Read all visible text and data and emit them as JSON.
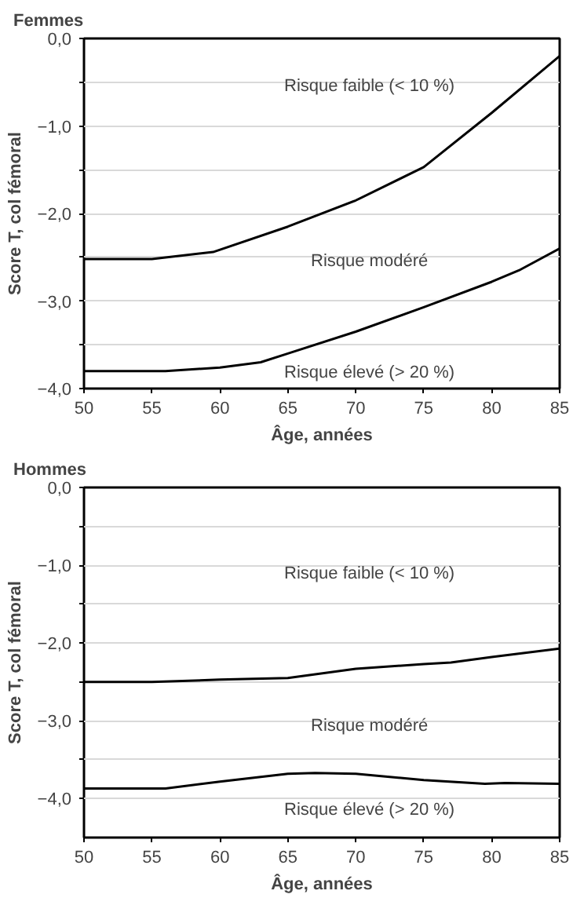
{
  "chart_data": [
    {
      "type": "line",
      "title": "Femmes",
      "xlabel": "Âge, années",
      "ylabel": "Score T, col fémoral",
      "xlim": [
        50,
        85
      ],
      "ylim": [
        -4,
        0
      ],
      "xticks": [
        50,
        55,
        60,
        65,
        70,
        75,
        80,
        85
      ],
      "yticks": [
        {
          "value": 0,
          "label": "0,0"
        },
        {
          "value": -0.5,
          "label": null
        },
        {
          "value": -1,
          "label": "−1,0"
        },
        {
          "value": -1.5,
          "label": null
        },
        {
          "value": -2,
          "label": "−2,0"
        },
        {
          "value": -2.5,
          "label": null
        },
        {
          "value": -3,
          "label": "−3,0"
        },
        {
          "value": -3.5,
          "label": null
        },
        {
          "value": -4,
          "label": "−4,0"
        }
      ],
      "grid": "y",
      "marker": "none",
      "line_style": "solid",
      "series": [
        {
          "color": "#000000",
          "x": [
            50,
            55,
            59.5,
            65,
            70,
            75,
            80,
            85
          ],
          "values": [
            -2.52,
            -2.52,
            -2.44,
            -2.15,
            -1.85,
            -1.47,
            -0.85,
            -0.2
          ]
        },
        {
          "color": "#000000",
          "x": [
            50,
            56,
            60,
            63,
            65,
            70,
            75,
            80,
            82,
            85
          ],
          "values": [
            -3.8,
            -3.8,
            -3.76,
            -3.7,
            -3.6,
            -3.35,
            -3.07,
            -2.78,
            -2.65,
            -2.4
          ]
        }
      ],
      "annotations": [
        "Risque faible (< 10 %)",
        "Risque modéré",
        "Risque élevé (> 20 %)"
      ]
    },
    {
      "type": "line",
      "title": "Hommes",
      "xlabel": "Âge, années",
      "ylabel": "Score T, col fémoral",
      "xlim": [
        50,
        85
      ],
      "ylim": [
        -4.5,
        0
      ],
      "xticks": [
        50,
        55,
        60,
        65,
        70,
        75,
        80,
        85
      ],
      "yticks": [
        {
          "value": 0,
          "label": "0,0"
        },
        {
          "value": -0.5,
          "label": null
        },
        {
          "value": -1,
          "label": "−1,0"
        },
        {
          "value": -1.5,
          "label": null
        },
        {
          "value": -2,
          "label": "−2,0"
        },
        {
          "value": -2.5,
          "label": null
        },
        {
          "value": -3,
          "label": "−3,0"
        },
        {
          "value": -3.5,
          "label": null
        },
        {
          "value": -4,
          "label": "−4,0"
        }
      ],
      "grid": "y",
      "marker": "none",
      "line_style": "solid",
      "series": [
        {
          "color": "#000000",
          "x": [
            50,
            55,
            60,
            65,
            70,
            75,
            77,
            80,
            85
          ],
          "values": [
            -2.5,
            -2.5,
            -2.47,
            -2.45,
            -2.33,
            -2.27,
            -2.25,
            -2.18,
            -2.07
          ]
        },
        {
          "color": "#000000",
          "x": [
            50,
            56,
            60,
            65,
            67,
            70,
            75,
            79.5,
            81,
            85
          ],
          "values": [
            -3.87,
            -3.87,
            -3.78,
            -3.68,
            -3.67,
            -3.68,
            -3.76,
            -3.81,
            -3.8,
            -3.81
          ]
        }
      ],
      "annotations": [
        "Risque faible (< 10 %)",
        "Risque modéré",
        "Risque élevé (> 20 %)"
      ]
    }
  ]
}
